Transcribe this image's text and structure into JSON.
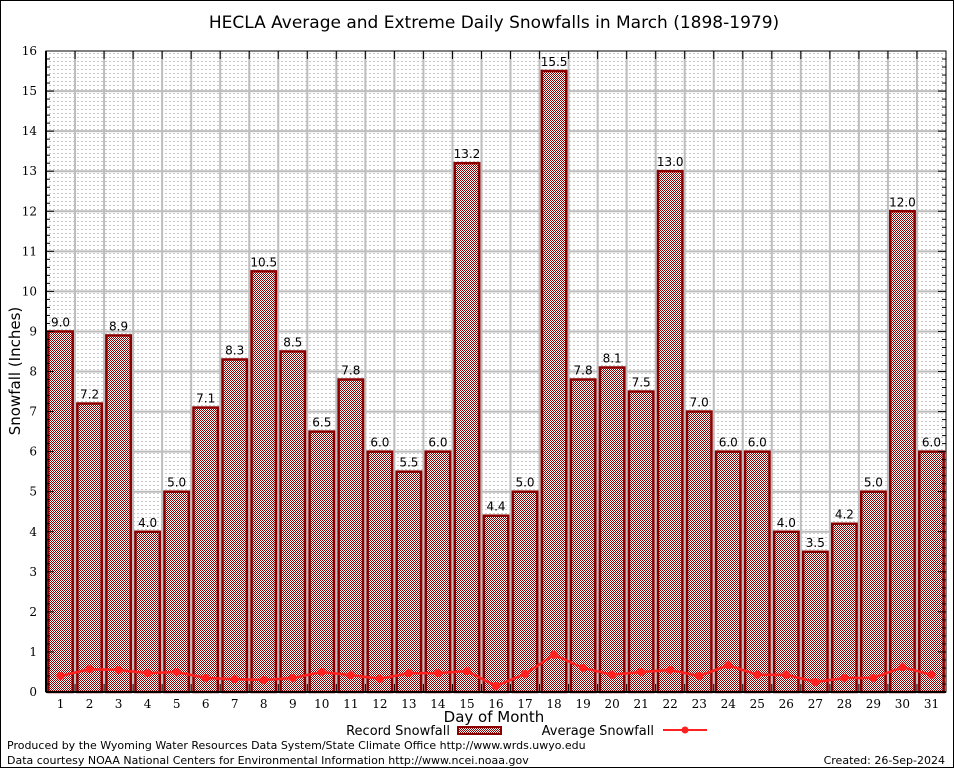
{
  "chart_data": {
    "type": "bar",
    "title": "HECLA Average and Extreme Daily Snowfalls in March (1898-1979)",
    "xlabel": "Day of Month",
    "ylabel": "Snowfall (Inches)",
    "ylim": [
      0,
      16
    ],
    "yticks": [
      0,
      1,
      2,
      3,
      4,
      5,
      6,
      7,
      8,
      9,
      10,
      11,
      12,
      13,
      14,
      15,
      16
    ],
    "grid": true,
    "categories": [
      "1",
      "2",
      "3",
      "4",
      "5",
      "6",
      "7",
      "8",
      "9",
      "10",
      "11",
      "12",
      "13",
      "14",
      "15",
      "16",
      "17",
      "18",
      "19",
      "20",
      "21",
      "22",
      "23",
      "24",
      "25",
      "26",
      "27",
      "28",
      "29",
      "30",
      "31"
    ],
    "series": [
      {
        "name": "Record Snowfall",
        "kind": "bar",
        "color": "#8b0000",
        "values": [
          9.0,
          7.2,
          8.9,
          4.0,
          5.0,
          7.1,
          8.3,
          10.5,
          8.5,
          6.5,
          7.8,
          6.0,
          5.5,
          6.0,
          13.2,
          4.4,
          5.0,
          15.5,
          7.8,
          8.1,
          7.5,
          13.0,
          7.0,
          6.0,
          6.0,
          4.0,
          3.5,
          4.2,
          5.0,
          12.0,
          6.0
        ],
        "labels": [
          "9.0",
          "7.2",
          "8.9",
          "4.0",
          "5.0",
          "7.1",
          "8.3",
          "10.5",
          "8.5",
          "6.5",
          "7.8",
          "6.0",
          "5.5",
          "6.0",
          "13.2",
          "4.4",
          "5.0",
          "15.5",
          "7.8",
          "8.1",
          "7.5",
          "13.0",
          "7.0",
          "6.0",
          "6.0",
          "4.0",
          "3.5",
          "4.2",
          "5.0",
          "12.0",
          "6.0"
        ]
      },
      {
        "name": "Average Snowfall",
        "kind": "line",
        "color": "#ff2020",
        "values": [
          0.4,
          0.57,
          0.55,
          0.47,
          0.5,
          0.35,
          0.32,
          0.3,
          0.35,
          0.5,
          0.42,
          0.33,
          0.47,
          0.47,
          0.52,
          0.15,
          0.45,
          0.93,
          0.6,
          0.43,
          0.5,
          0.55,
          0.4,
          0.67,
          0.43,
          0.43,
          0.25,
          0.35,
          0.35,
          0.62,
          0.43
        ]
      }
    ],
    "legend": {
      "placement": "bottom-center",
      "entries": [
        "Record Snowfall",
        "Average Snowfall"
      ]
    }
  },
  "footer": {
    "produced_by": "Produced by the Wyoming Water Resources Data System/State Climate Office http://www.wrds.uwyo.edu",
    "data_courtesy": "Data courtesy NOAA National Centers for Environmental Information http://www.ncei.noaa.gov",
    "created": "Created:  26-Sep-2024"
  }
}
